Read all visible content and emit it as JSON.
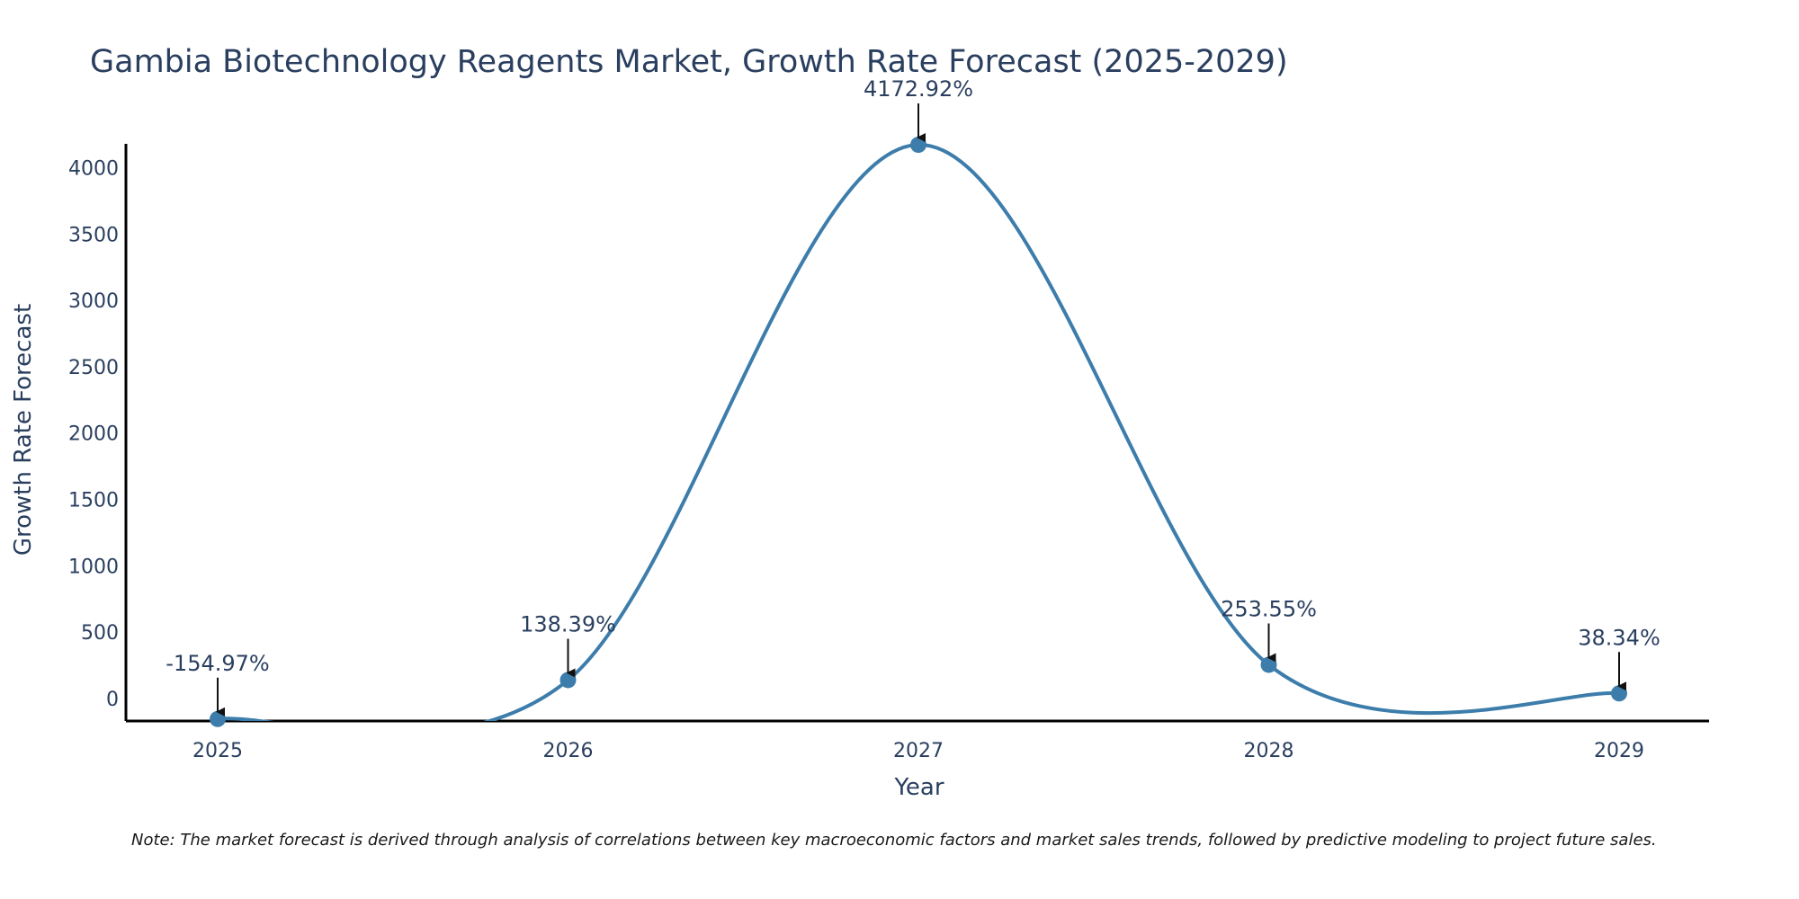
{
  "chart_data": {
    "type": "line",
    "title": "Gambia Biotechnology Reagents Market, Growth Rate Forecast (2025-2029)",
    "xlabel": "Year",
    "ylabel": "Growth Rate Forecast",
    "categories": [
      "2025",
      "2026",
      "2027",
      "2028",
      "2029"
    ],
    "values": [
      -154.97,
      138.39,
      4172.92,
      253.55,
      38.34
    ],
    "data_labels": [
      "-154.97%",
      "138.39%",
      "4172.92%",
      "253.55%",
      "38.34%"
    ],
    "ylim": [
      -170,
      4180
    ],
    "yticks": [
      0,
      500,
      1000,
      1500,
      2000,
      2500,
      3000,
      3500,
      4000
    ],
    "ytick_labels": [
      "0",
      "500",
      "1000",
      "1500",
      "2000",
      "2500",
      "3000",
      "3500",
      "4000"
    ],
    "line_shape": "spline",
    "grid": false,
    "series_color": "#3d7dab",
    "note": "Note: The market forecast is derived through analysis of correlations between key macroeconomic factors and market sales trends, followed by predictive modeling to project future sales."
  }
}
